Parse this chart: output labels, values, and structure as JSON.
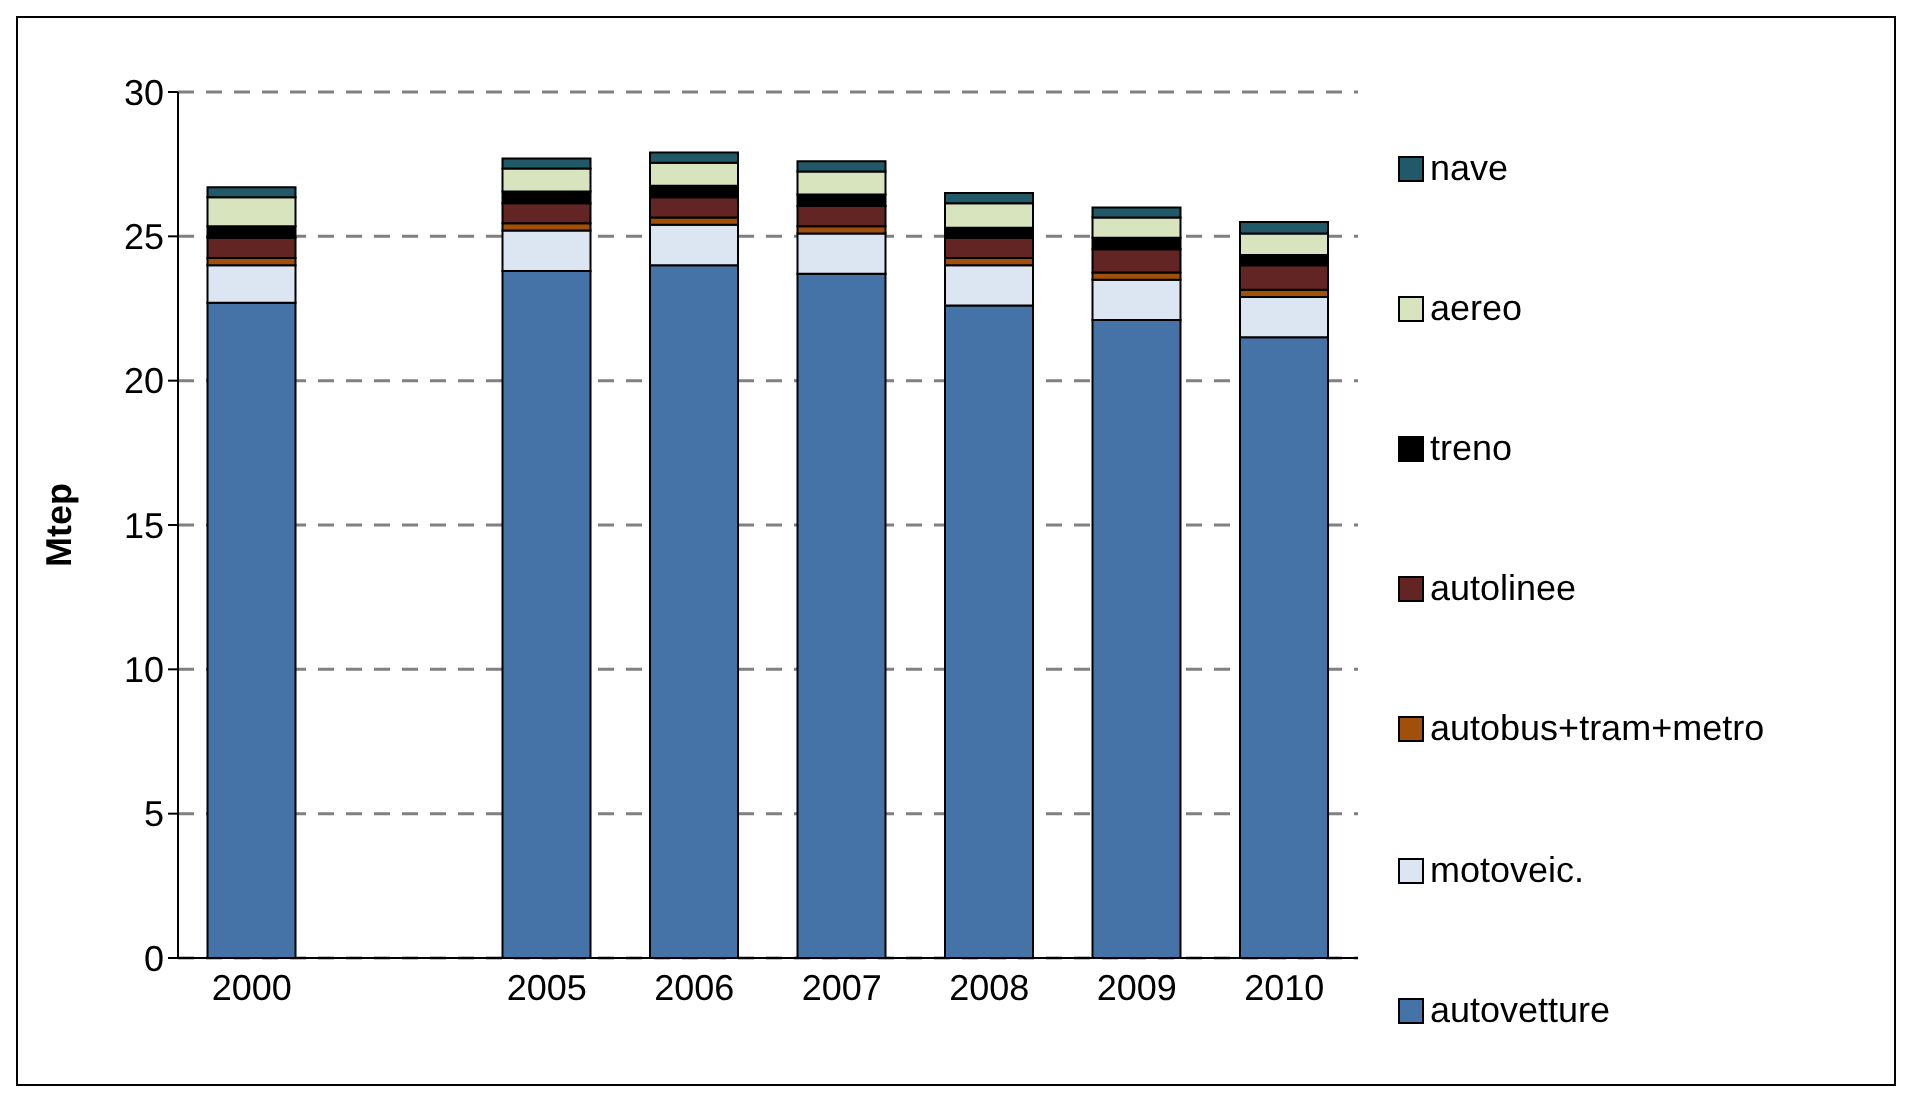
{
  "chart_data": {
    "type": "bar",
    "ylabel": "Mtep",
    "stacked": true,
    "grid": "y",
    "legend": "right",
    "categories": [
      "2000",
      null,
      "2005",
      "2006",
      "2007",
      "2008",
      "2009",
      "2010"
    ],
    "ylim": [
      0,
      30
    ],
    "yticks": [
      0,
      5,
      10,
      15,
      20,
      25,
      30
    ],
    "series": [
      {
        "name": "autovetture",
        "color": "#4572a7",
        "values": [
          22.7,
          null,
          23.8,
          24.0,
          23.7,
          22.6,
          22.1,
          21.5
        ]
      },
      {
        "name": "motoveic.",
        "color": "#dce6f2",
        "values": [
          1.3,
          null,
          1.4,
          1.4,
          1.4,
          1.4,
          1.4,
          1.4
        ]
      },
      {
        "name": "autobus+tram+metro",
        "color": "#a0500a",
        "values": [
          0.25,
          null,
          0.25,
          0.25,
          0.25,
          0.25,
          0.25,
          0.25
        ]
      },
      {
        "name": "autolinee",
        "color": "#632523",
        "values": [
          0.7,
          null,
          0.7,
          0.7,
          0.7,
          0.7,
          0.8,
          0.85
        ]
      },
      {
        "name": "treno",
        "color": "#000000",
        "values": [
          0.4,
          null,
          0.4,
          0.4,
          0.4,
          0.35,
          0.4,
          0.35
        ]
      },
      {
        "name": "aereo",
        "color": "#d7e4bd",
        "values": [
          1.0,
          null,
          0.8,
          0.8,
          0.8,
          0.85,
          0.7,
          0.75
        ]
      },
      {
        "name": "nave",
        "color": "#215968",
        "values": [
          0.35,
          null,
          0.35,
          0.35,
          0.35,
          0.35,
          0.35,
          0.4
        ]
      }
    ]
  }
}
